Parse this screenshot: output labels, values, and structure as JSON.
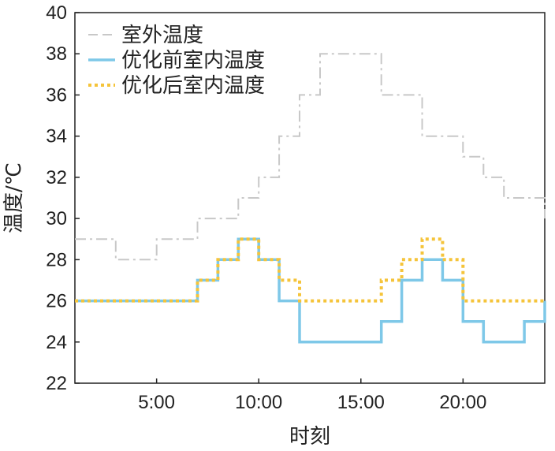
{
  "chart_data": {
    "type": "line",
    "step": true,
    "xlabel": "时刻",
    "ylabel": "温度/℃",
    "xlim": [
      1,
      24
    ],
    "ylim": [
      22,
      40
    ],
    "x_ticks": [
      5,
      10,
      15,
      20
    ],
    "x_tick_labels": [
      "5:00",
      "10:00",
      "15:00",
      "20:00"
    ],
    "y_ticks": [
      22,
      24,
      26,
      28,
      30,
      32,
      34,
      36,
      38,
      40
    ],
    "y_tick_labels": [
      "22",
      "24",
      "26",
      "28",
      "30",
      "32",
      "34",
      "36",
      "38",
      "40"
    ],
    "grid": false,
    "legend_position": "top-left",
    "hours": [
      1,
      2,
      3,
      4,
      5,
      6,
      7,
      8,
      9,
      10,
      11,
      12,
      13,
      14,
      15,
      16,
      17,
      18,
      19,
      20,
      21,
      22,
      23,
      24
    ],
    "series": [
      {
        "name": "室外温度",
        "color": "#c8c8c8",
        "dash": "dash-dot",
        "values": [
          29,
          29,
          28,
          28,
          29,
          29,
          30,
          30,
          31,
          32,
          34,
          36,
          38,
          38,
          38,
          36,
          36,
          34,
          34,
          33,
          32,
          31,
          31,
          30
        ]
      },
      {
        "name": "优化前室内温度",
        "color": "#7ec8e8",
        "dash": "solid",
        "values": [
          26,
          26,
          26,
          26,
          26,
          26,
          27,
          28,
          29,
          28,
          26,
          24,
          24,
          24,
          24,
          25,
          27,
          28,
          27,
          25,
          24,
          24,
          25,
          26
        ]
      },
      {
        "name": "优化后室内温度",
        "color": "#f5c43a",
        "dash": "dotted",
        "values": [
          26,
          26,
          26,
          26,
          26,
          26,
          27,
          28,
          29,
          28,
          27,
          26,
          26,
          26,
          26,
          27,
          28,
          29,
          28,
          26,
          26,
          26,
          26,
          26
        ]
      }
    ]
  }
}
